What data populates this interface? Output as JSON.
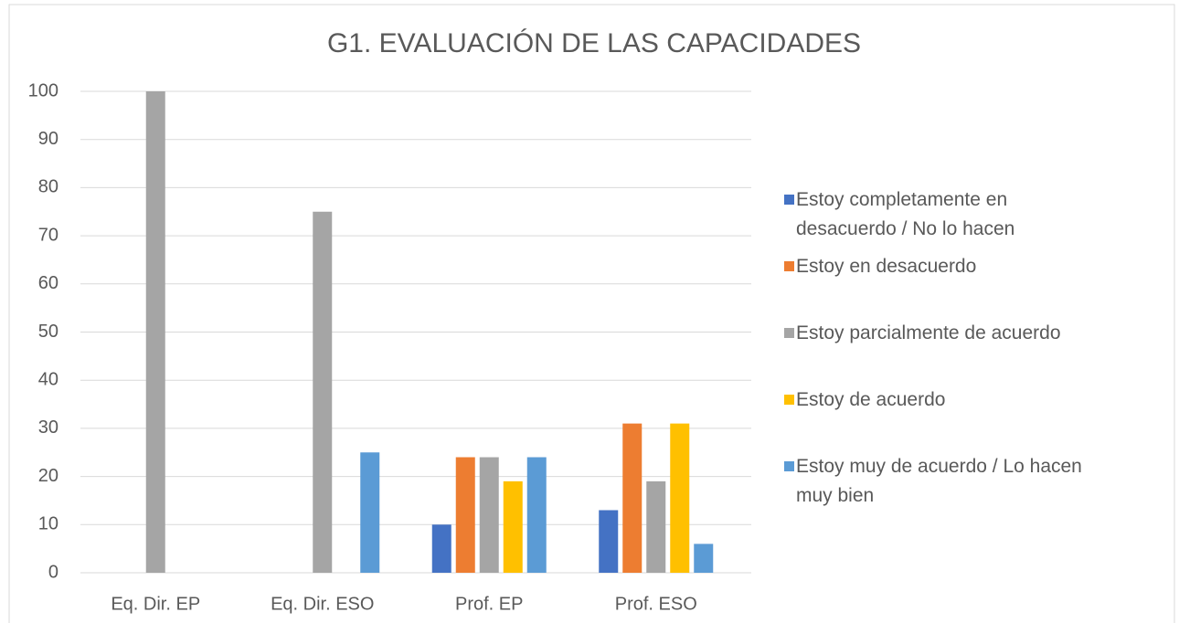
{
  "chart_data": {
    "type": "bar",
    "title": "G1. EVALUACIÓN DE LAS CAPACIDADES",
    "categories": [
      "Eq. Dir. EP",
      "Eq. Dir. ESO",
      "Prof. EP",
      "Prof. ESO"
    ],
    "series": [
      {
        "name": "Estoy completamente en desacuerdo / No lo hacen",
        "color": "#4472c4",
        "values": [
          0,
          0,
          10,
          13
        ]
      },
      {
        "name": "Estoy en desacuerdo",
        "color": "#ed7d31",
        "values": [
          0,
          0,
          24,
          31
        ]
      },
      {
        "name": "Estoy parcialmente de acuerdo",
        "color": "#a5a5a5",
        "values": [
          100,
          75,
          24,
          19
        ]
      },
      {
        "name": "Estoy de acuerdo",
        "color": "#ffc000",
        "values": [
          0,
          0,
          19,
          31
        ]
      },
      {
        "name": "Estoy muy de acuerdo / Lo hacen muy bien",
        "color": "#5b9bd5",
        "values": [
          0,
          25,
          24,
          6
        ]
      }
    ],
    "ylim": [
      0,
      100
    ],
    "yticks": [
      0,
      10,
      20,
      30,
      40,
      50,
      60,
      70,
      80,
      90,
      100
    ],
    "grid": true,
    "legend": "right"
  }
}
